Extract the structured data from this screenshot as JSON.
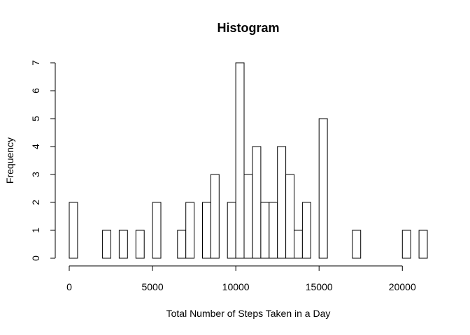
{
  "chart_data": {
    "type": "bar",
    "title": "Histogram",
    "xlabel": "Total Number of Steps Taken in a Day",
    "ylabel": "Frequency",
    "bin_width": 500,
    "bins_start": [
      0,
      500,
      1000,
      1500,
      2000,
      2500,
      3000,
      3500,
      4000,
      4500,
      5000,
      5500,
      6000,
      6500,
      7000,
      7500,
      8000,
      8500,
      9000,
      9500,
      10000,
      10500,
      11000,
      11500,
      12000,
      12500,
      13000,
      13500,
      14000,
      14500,
      15000,
      15500,
      16000,
      16500,
      17000,
      17500,
      18000,
      18500,
      19000,
      19500,
      20000,
      20500,
      21000
    ],
    "values": [
      2,
      0,
      0,
      0,
      1,
      0,
      1,
      0,
      1,
      0,
      2,
      0,
      0,
      1,
      2,
      0,
      2,
      3,
      0,
      2,
      7,
      3,
      4,
      2,
      2,
      4,
      3,
      1,
      2,
      0,
      5,
      0,
      0,
      0,
      1,
      0,
      0,
      0,
      0,
      0,
      1,
      0,
      1
    ],
    "xlim": [
      0,
      21500
    ],
    "ylim": [
      0,
      7
    ],
    "xticks": [
      0,
      5000,
      10000,
      15000,
      20000
    ],
    "xtick_labels": [
      "0",
      "5000",
      "10000",
      "15000",
      "20000"
    ],
    "yticks": [
      0,
      1,
      2,
      3,
      4,
      5,
      6,
      7
    ],
    "ytick_labels": [
      "0",
      "1",
      "2",
      "3",
      "4",
      "5",
      "6",
      "7"
    ],
    "grid": false,
    "colors": {
      "bar_fill": "#ffffff",
      "bar_stroke": "#000000"
    }
  }
}
